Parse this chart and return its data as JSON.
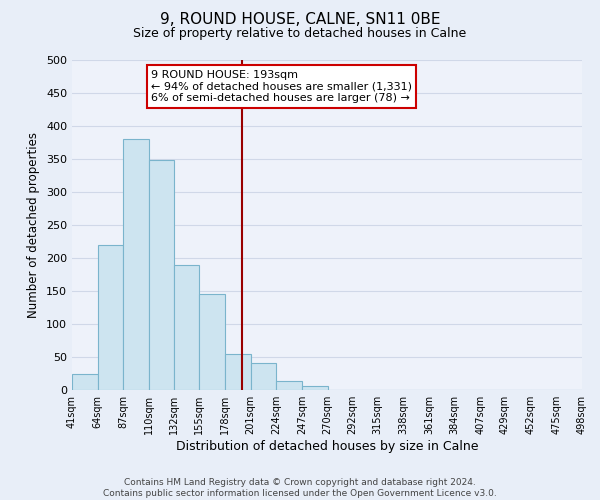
{
  "title": "9, ROUND HOUSE, CALNE, SN11 0BE",
  "subtitle": "Size of property relative to detached houses in Calne",
  "xlabel": "Distribution of detached houses by size in Calne",
  "ylabel": "Number of detached properties",
  "bar_values": [
    25,
    220,
    380,
    348,
    190,
    146,
    55,
    41,
    13,
    6,
    0,
    0,
    0,
    0,
    0,
    0,
    0,
    0,
    0,
    0
  ],
  "bin_edges": [
    41,
    64,
    87,
    110,
    132,
    155,
    178,
    201,
    224,
    247,
    270,
    292,
    315,
    338,
    361,
    384,
    407,
    429,
    452,
    475,
    498
  ],
  "tick_labels": [
    "41sqm",
    "64sqm",
    "87sqm",
    "110sqm",
    "132sqm",
    "155sqm",
    "178sqm",
    "201sqm",
    "224sqm",
    "247sqm",
    "270sqm",
    "292sqm",
    "315sqm",
    "338sqm",
    "361sqm",
    "384sqm",
    "407sqm",
    "429sqm",
    "452sqm",
    "475sqm",
    "498sqm"
  ],
  "bar_color": "#cde4f0",
  "bar_edge_color": "#7ab4cc",
  "vline_x": 193,
  "vline_color": "#990000",
  "annotation_title": "9 ROUND HOUSE: 193sqm",
  "annotation_line1": "← 94% of detached houses are smaller (1,331)",
  "annotation_line2": "6% of semi-detached houses are larger (78) →",
  "annotation_box_facecolor": "#ffffff",
  "annotation_box_edgecolor": "#cc0000",
  "ylim": [
    0,
    500
  ],
  "yticks": [
    0,
    50,
    100,
    150,
    200,
    250,
    300,
    350,
    400,
    450,
    500
  ],
  "footer_line1": "Contains HM Land Registry data © Crown copyright and database right 2024.",
  "footer_line2": "Contains public sector information licensed under the Open Government Licence v3.0.",
  "fig_facecolor": "#e8eef8",
  "axes_facecolor": "#eef2fa",
  "grid_color": "#d0d8e8",
  "title_fontsize": 11,
  "subtitle_fontsize": 9,
  "ylabel_fontsize": 8.5,
  "xlabel_fontsize": 9,
  "tick_fontsize": 7,
  "ytick_fontsize": 8,
  "footer_fontsize": 6.5,
  "annot_fontsize": 8
}
